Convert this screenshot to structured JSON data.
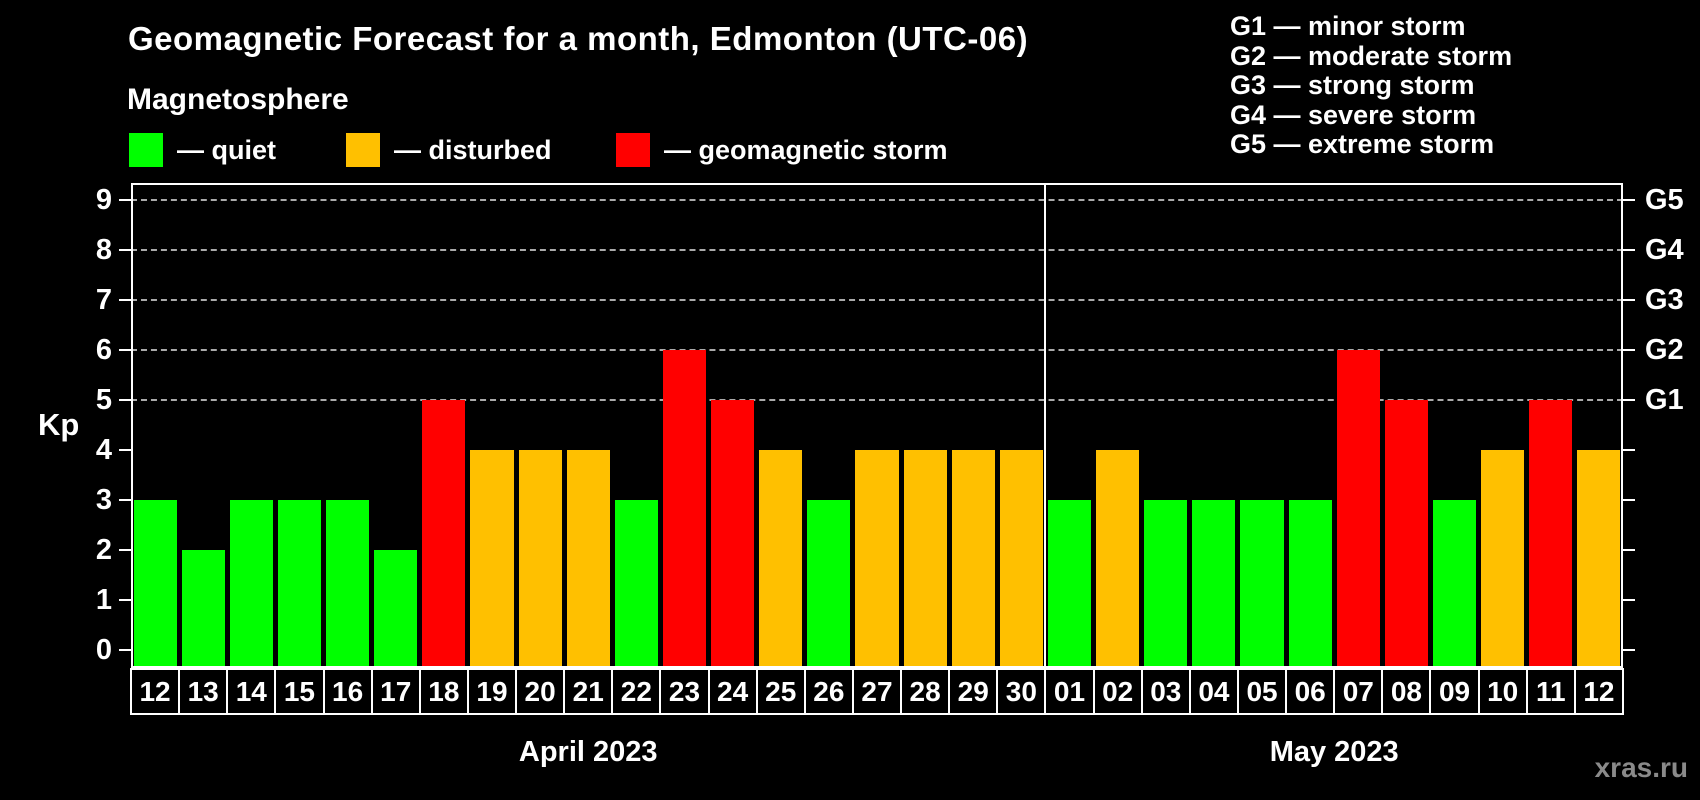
{
  "title": "Geomagnetic Forecast for a month, Edmonton (UTC-06)",
  "subtitle": "Magnetosphere",
  "legend": {
    "items": [
      {
        "label": "— quiet",
        "state": "quiet"
      },
      {
        "label": "— disturbed",
        "state": "disturbed"
      },
      {
        "label": "— geomagnetic storm",
        "state": "storm"
      }
    ]
  },
  "g_scale_legend": [
    "G1 — minor storm",
    "G2 — moderate storm",
    "G3 — strong storm",
    "G4 — severe storm",
    "G5 — extreme storm"
  ],
  "watermark": "xras.ru",
  "chart_data": {
    "type": "bar",
    "title": "Geomagnetic Forecast for a month, Edmonton (UTC-06)",
    "subtitle": "Magnetosphere",
    "ylabel": "Kp",
    "ylim": [
      0,
      9.4
    ],
    "yticks": [
      0,
      1,
      2,
      3,
      4,
      5,
      6,
      7,
      8,
      9
    ],
    "gridlines_at": [
      5,
      6,
      7,
      8,
      9
    ],
    "grid_style": "dashed horizontal gray lines at Kp 5-9 only",
    "legend_position": "top-left",
    "right_axis": [
      {
        "kp": 5,
        "label": "G1"
      },
      {
        "kp": 6,
        "label": "G2"
      },
      {
        "kp": 7,
        "label": "G3"
      },
      {
        "kp": 8,
        "label": "G4"
      },
      {
        "kp": 9,
        "label": "G5"
      }
    ],
    "colors": {
      "quiet": "#00ff00",
      "disturbed": "#ffc000",
      "storm": "#ff0000",
      "background": "#000000",
      "frame": "#ffffff",
      "gridline": "#aaaaaa",
      "watermark": "#8a8a8a"
    },
    "months": [
      {
        "label": "April 2023",
        "days": [
          {
            "day": "12",
            "kp": 3,
            "state": "quiet"
          },
          {
            "day": "13",
            "kp": 2,
            "state": "quiet"
          },
          {
            "day": "14",
            "kp": 3,
            "state": "quiet"
          },
          {
            "day": "15",
            "kp": 3,
            "state": "quiet"
          },
          {
            "day": "16",
            "kp": 3,
            "state": "quiet"
          },
          {
            "day": "17",
            "kp": 2,
            "state": "quiet"
          },
          {
            "day": "18",
            "kp": 5,
            "state": "storm"
          },
          {
            "day": "19",
            "kp": 4,
            "state": "disturbed"
          },
          {
            "day": "20",
            "kp": 4,
            "state": "disturbed"
          },
          {
            "day": "21",
            "kp": 4,
            "state": "disturbed"
          },
          {
            "day": "22",
            "kp": 3,
            "state": "quiet"
          },
          {
            "day": "23",
            "kp": 6,
            "state": "storm"
          },
          {
            "day": "24",
            "kp": 5,
            "state": "storm"
          },
          {
            "day": "25",
            "kp": 4,
            "state": "disturbed"
          },
          {
            "day": "26",
            "kp": 3,
            "state": "quiet"
          },
          {
            "day": "27",
            "kp": 4,
            "state": "disturbed"
          },
          {
            "day": "28",
            "kp": 4,
            "state": "disturbed"
          },
          {
            "day": "29",
            "kp": 4,
            "state": "disturbed"
          },
          {
            "day": "30",
            "kp": 4,
            "state": "disturbed"
          }
        ]
      },
      {
        "label": "May 2023",
        "days": [
          {
            "day": "01",
            "kp": 3,
            "state": "quiet"
          },
          {
            "day": "02",
            "kp": 4,
            "state": "disturbed"
          },
          {
            "day": "03",
            "kp": 3,
            "state": "quiet"
          },
          {
            "day": "04",
            "kp": 3,
            "state": "quiet"
          },
          {
            "day": "05",
            "kp": 3,
            "state": "quiet"
          },
          {
            "day": "06",
            "kp": 3,
            "state": "quiet"
          },
          {
            "day": "07",
            "kp": 6,
            "state": "storm"
          },
          {
            "day": "08",
            "kp": 5,
            "state": "storm"
          },
          {
            "day": "09",
            "kp": 3,
            "state": "quiet"
          },
          {
            "day": "10",
            "kp": 4,
            "state": "disturbed"
          },
          {
            "day": "11",
            "kp": 5,
            "state": "storm"
          },
          {
            "day": "12",
            "kp": 4,
            "state": "disturbed"
          }
        ]
      }
    ]
  }
}
